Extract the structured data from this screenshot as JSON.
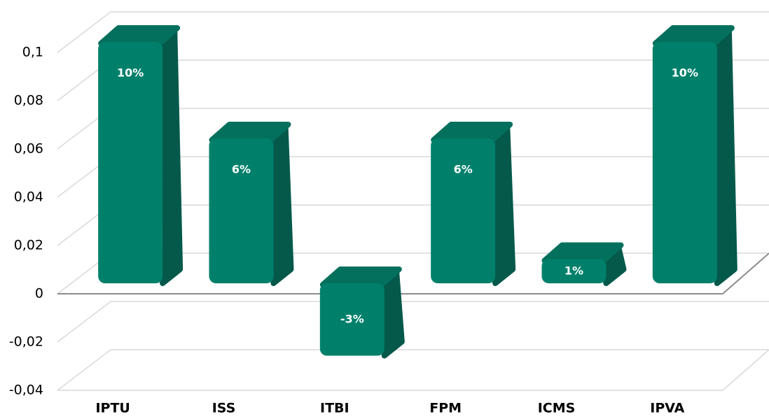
{
  "chart_data": {
    "type": "bar3d",
    "categories": [
      "IPTU",
      "ISS",
      "ITBI",
      "FPM",
      "ICMS",
      "IPVA"
    ],
    "values": [
      0.1,
      0.06,
      -0.03,
      0.06,
      0.01,
      0.1
    ],
    "value_labels": [
      "10%",
      "6%",
      "-3%",
      "6%",
      "1%",
      "10%"
    ],
    "color": "#00806b",
    "ylim": [
      -0.04,
      0.1
    ],
    "yticks": [
      {
        "value": -0.04,
        "label": "-0,04"
      },
      {
        "value": -0.02,
        "label": "-0,02"
      },
      0,
      {
        "value": 0.02,
        "label": "0,02"
      },
      {
        "value": 0.04,
        "label": "0,04"
      },
      {
        "value": 0.06,
        "label": "0,06"
      },
      {
        "value": 0.08,
        "label": "0,08"
      },
      {
        "value": 0.1,
        "label": "0,1"
      }
    ],
    "grid": true
  }
}
